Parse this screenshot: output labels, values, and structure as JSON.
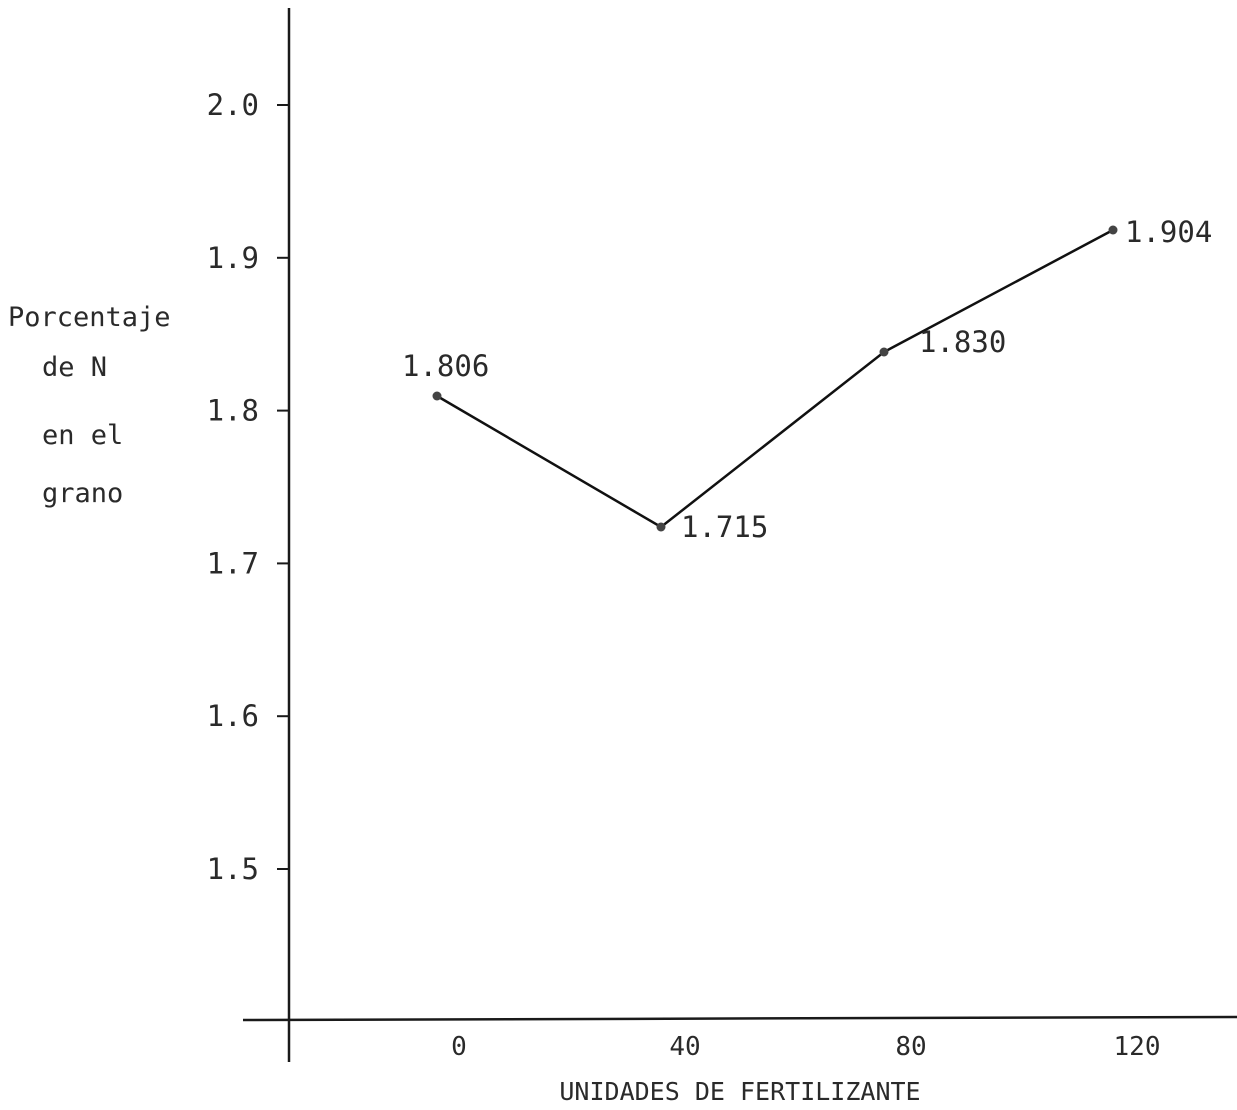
{
  "chart_data": {
    "type": "line",
    "title": "",
    "xlabel": "UNIDADES DE FERTILIZANTE",
    "ylabel_lines": [
      "Porcentaje",
      "de N",
      "en el",
      "grano"
    ],
    "categories": [
      "0",
      "40",
      "80",
      "120"
    ],
    "x": [
      0,
      40,
      80,
      120
    ],
    "series": [
      {
        "values": [
          1.806,
          1.715,
          1.83,
          1.904
        ],
        "data_labels": [
          "1.806",
          "1.715",
          "1.830",
          "1.904"
        ]
      }
    ],
    "y_ticks": [
      "1.5",
      "1.6",
      "1.7",
      "1.8",
      "1.9",
      "2.0"
    ],
    "ylim": [
      1.4,
      2.0
    ],
    "grid": false,
    "legend": "none",
    "line_color": "#111111",
    "axis_color": "#1a1a1a"
  }
}
